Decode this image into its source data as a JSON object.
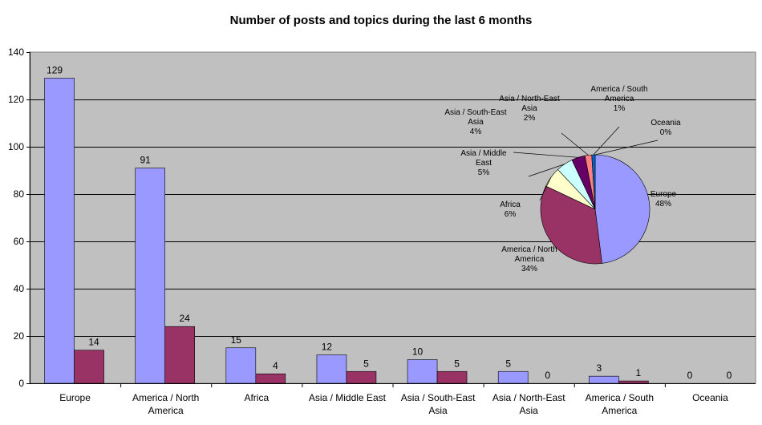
{
  "chart_data": [
    {
      "type": "bar",
      "title": "Number of posts and topics during the last 6 months",
      "xlabel": "",
      "ylabel": "",
      "ylim": [
        0,
        140
      ],
      "yticks": [
        "0",
        "20",
        "40",
        "60",
        "80",
        "100",
        "120",
        "140"
      ],
      "grid": true,
      "categories": [
        [
          "Europe"
        ],
        [
          "America / North",
          "America"
        ],
        [
          "Africa"
        ],
        [
          "Asia / Middle East"
        ],
        [
          "Asia / South-East",
          "Asia"
        ],
        [
          "Asia / North-East",
          "Asia"
        ],
        [
          "America / South",
          "America"
        ],
        [
          "Oceania"
        ]
      ],
      "series": [
        {
          "values": [
            129,
            91,
            15,
            12,
            10,
            5,
            3,
            0
          ],
          "color": "#9999ff"
        },
        {
          "values": [
            14,
            24,
            4,
            5,
            5,
            0,
            1,
            0
          ],
          "color": "#993366"
        }
      ],
      "plot_background": "#c0c0c0"
    },
    {
      "type": "pie",
      "slices": [
        {
          "label": [
            "Europe",
            "48%"
          ],
          "value": 48,
          "color": "#9999ff"
        },
        {
          "label": [
            "America / North",
            "America",
            "34%"
          ],
          "value": 34,
          "color": "#993366"
        },
        {
          "label": [
            "Africa",
            "6%"
          ],
          "value": 6,
          "color": "#ffffcc"
        },
        {
          "label": [
            "Asia / Middle",
            "East",
            "5%"
          ],
          "value": 5,
          "color": "#ccffff"
        },
        {
          "label": [
            "Asia / South-East",
            "Asia",
            "4%"
          ],
          "value": 4,
          "color": "#660066"
        },
        {
          "label": [
            "Asia / North-East",
            "Asia",
            "2%"
          ],
          "value": 2,
          "color": "#ff8080"
        },
        {
          "label": [
            "America / South",
            "America",
            "1%"
          ],
          "value": 1,
          "color": "#0066cc"
        },
        {
          "label": [
            "Oceania",
            "0%"
          ],
          "value": 0,
          "color": "#ccccff"
        }
      ]
    }
  ]
}
